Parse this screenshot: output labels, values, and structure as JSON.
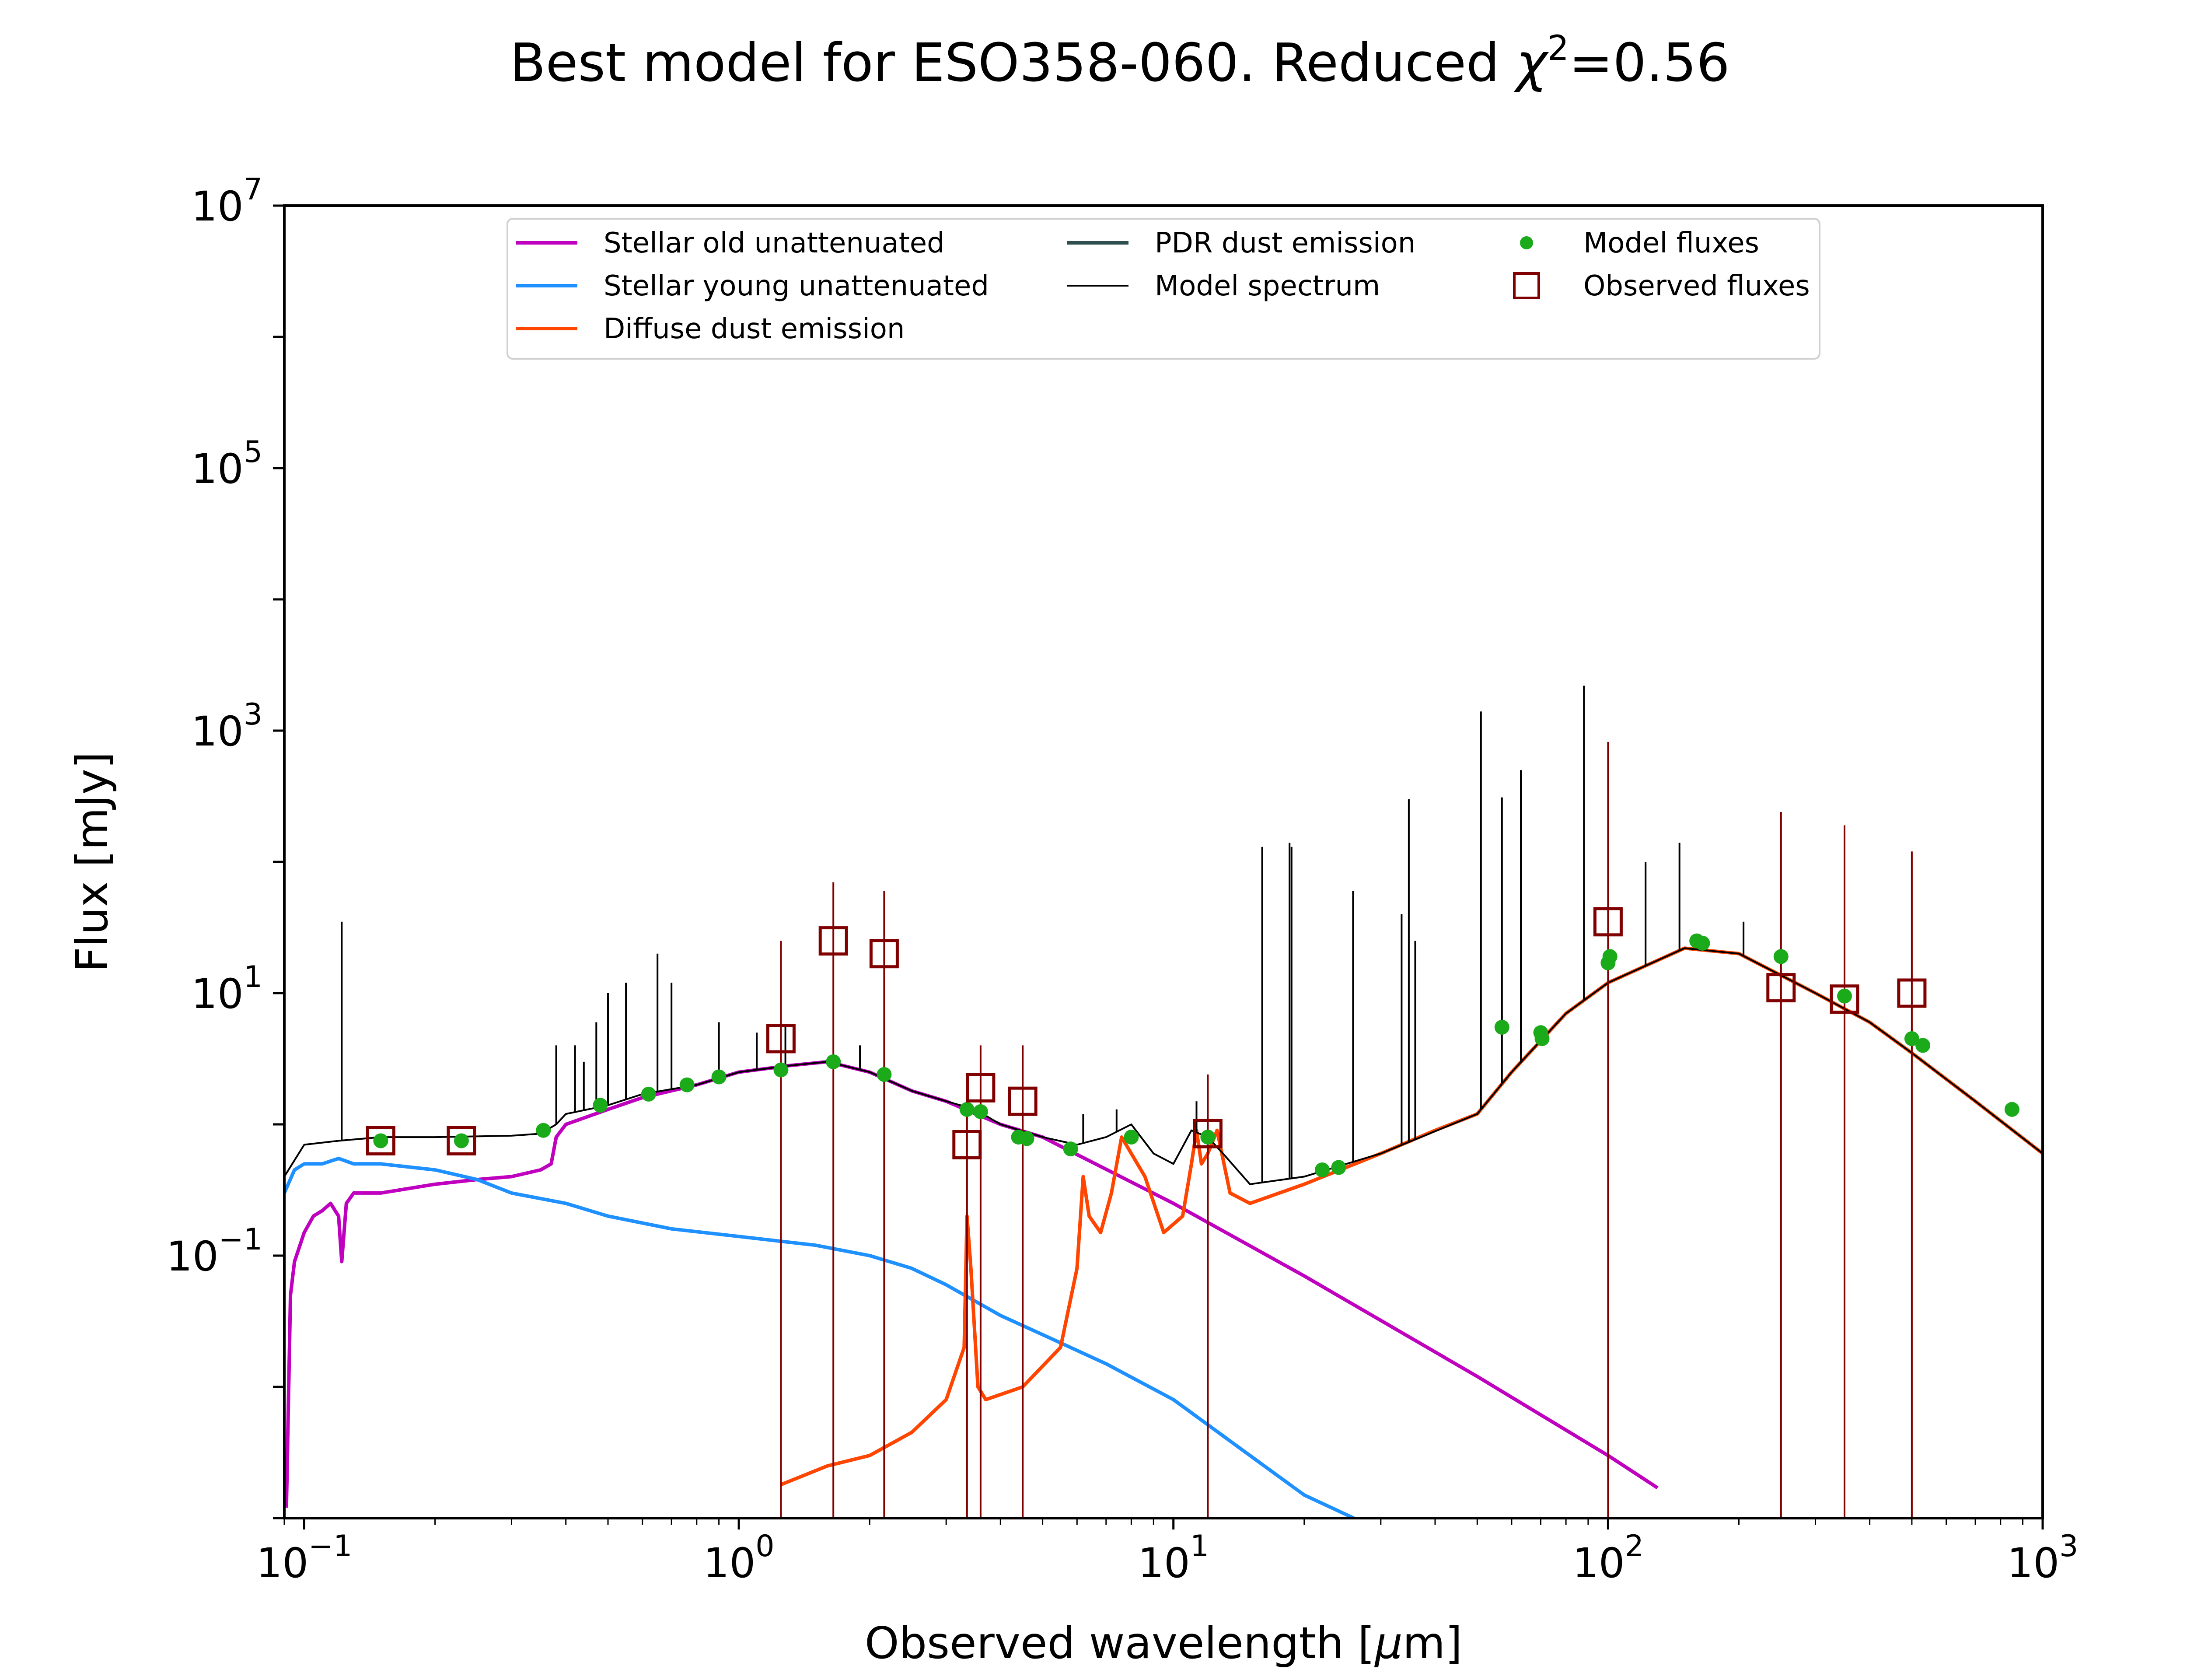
{
  "chart_data": {
    "type": "line",
    "title_main": "Best model for ESO358-060. Reduced ",
    "title_chi": "χ",
    "title_sup": "2",
    "title_value": "=0.56",
    "xlabel_pre": "Observed wavelength [",
    "xlabel_mu": "μ",
    "xlabel_post": "m]",
    "ylabel": "Flux [mJy]",
    "xscale": "log",
    "yscale": "log",
    "xlim": [
      0.09,
      1000
    ],
    "ylim": [
      0.001,
      10000000
    ],
    "grid": false,
    "legend_position": "top-center",
    "x_ticks": [
      {
        "value": 0.1,
        "base": "10",
        "exp": "−1"
      },
      {
        "value": 1,
        "base": "10",
        "exp": "0"
      },
      {
        "value": 10,
        "base": "10",
        "exp": "1"
      },
      {
        "value": 100,
        "base": "10",
        "exp": "2"
      },
      {
        "value": 1000,
        "base": "10",
        "exp": "3"
      }
    ],
    "y_ticks": [
      {
        "value": 0.1,
        "base": "10",
        "exp": "−1"
      },
      {
        "value": 10,
        "base": "10",
        "exp": "1"
      },
      {
        "value": 1000,
        "base": "10",
        "exp": "3"
      },
      {
        "value": 100000,
        "base": "10",
        "exp": "5"
      },
      {
        "value": 10000000,
        "base": "10",
        "exp": "7"
      }
    ],
    "legend": [
      {
        "label": "Stellar old unattenuated",
        "color": "#bf00bf",
        "kind": "line"
      },
      {
        "label": "Stellar young unattenuated",
        "color": "#1e90ff",
        "kind": "line"
      },
      {
        "label": "Diffuse dust emission",
        "color": "#ff4500",
        "kind": "line"
      },
      {
        "label": "PDR dust emission",
        "color": "#2f4f4f",
        "kind": "line"
      },
      {
        "label": "Model spectrum",
        "color": "#000000",
        "kind": "thinline"
      },
      {
        "label": "Model fluxes",
        "color": "#1aaa1a",
        "kind": "dot"
      },
      {
        "label": "Observed fluxes",
        "color": "#800000",
        "kind": "square"
      }
    ],
    "series": [
      {
        "key": "stellar_old",
        "color": "#bf00bf",
        "points": [
          [
            0.091,
            0.0012
          ],
          [
            0.093,
            0.05
          ],
          [
            0.095,
            0.09
          ],
          [
            0.1,
            0.15
          ],
          [
            0.105,
            0.2
          ],
          [
            0.11,
            0.22
          ],
          [
            0.115,
            0.25
          ],
          [
            0.12,
            0.2
          ],
          [
            0.122,
            0.09
          ],
          [
            0.125,
            0.25
          ],
          [
            0.13,
            0.3
          ],
          [
            0.15,
            0.3
          ],
          [
            0.2,
            0.35
          ],
          [
            0.25,
            0.38
          ],
          [
            0.3,
            0.4
          ],
          [
            0.35,
            0.45
          ],
          [
            0.37,
            0.5
          ],
          [
            0.38,
            0.8
          ],
          [
            0.4,
            1.0
          ],
          [
            0.5,
            1.3
          ],
          [
            0.6,
            1.6
          ],
          [
            0.8,
            2.0
          ],
          [
            1.0,
            2.5
          ],
          [
            1.3,
            2.8
          ],
          [
            1.6,
            3.0
          ],
          [
            2.0,
            2.5
          ],
          [
            2.5,
            1.8
          ],
          [
            3.0,
            1.5
          ],
          [
            4.0,
            1.0
          ],
          [
            5.0,
            0.8
          ],
          [
            10.0,
            0.25
          ],
          [
            20.0,
            0.07
          ],
          [
            50.0,
            0.012
          ],
          [
            100.0,
            0.003
          ],
          [
            130.0,
            0.0017
          ]
        ]
      },
      {
        "key": "stellar_young",
        "color": "#1e90ff",
        "points": [
          [
            0.09,
            0.3
          ],
          [
            0.095,
            0.45
          ],
          [
            0.1,
            0.5
          ],
          [
            0.11,
            0.5
          ],
          [
            0.12,
            0.55
          ],
          [
            0.13,
            0.5
          ],
          [
            0.15,
            0.5
          ],
          [
            0.2,
            0.45
          ],
          [
            0.25,
            0.38
          ],
          [
            0.3,
            0.3
          ],
          [
            0.4,
            0.25
          ],
          [
            0.5,
            0.2
          ],
          [
            0.7,
            0.16
          ],
          [
            1.0,
            0.14
          ],
          [
            1.5,
            0.12
          ],
          [
            2.0,
            0.1
          ],
          [
            2.5,
            0.08
          ],
          [
            3.0,
            0.06
          ],
          [
            4.0,
            0.035
          ],
          [
            5.0,
            0.025
          ],
          [
            7.0,
            0.015
          ],
          [
            10.0,
            0.008
          ],
          [
            15.0,
            0.003
          ],
          [
            20.0,
            0.0015
          ],
          [
            26.0,
            0.001
          ]
        ]
      },
      {
        "key": "diffuse_dust",
        "color": "#ff4500",
        "points": [
          [
            1.25,
            0.0018
          ],
          [
            1.6,
            0.0025
          ],
          [
            2.0,
            0.003
          ],
          [
            2.5,
            0.0045
          ],
          [
            3.0,
            0.008
          ],
          [
            3.3,
            0.02
          ],
          [
            3.35,
            0.2
          ],
          [
            3.42,
            0.08
          ],
          [
            3.55,
            0.01
          ],
          [
            3.7,
            0.008
          ],
          [
            4.5,
            0.01
          ],
          [
            5.5,
            0.02
          ],
          [
            6.0,
            0.08
          ],
          [
            6.2,
            0.4
          ],
          [
            6.4,
            0.2
          ],
          [
            6.8,
            0.15
          ],
          [
            7.2,
            0.3
          ],
          [
            7.6,
            0.8
          ],
          [
            8.0,
            0.6
          ],
          [
            8.6,
            0.4
          ],
          [
            9.5,
            0.15
          ],
          [
            10.5,
            0.2
          ],
          [
            11.0,
            0.5
          ],
          [
            11.3,
            0.9
          ],
          [
            11.6,
            0.5
          ],
          [
            12.0,
            0.6
          ],
          [
            12.6,
            0.9
          ],
          [
            13.5,
            0.3
          ],
          [
            15.0,
            0.25
          ],
          [
            20.0,
            0.35
          ],
          [
            30.0,
            0.6
          ],
          [
            40.0,
            0.9
          ],
          [
            50.0,
            1.2
          ],
          [
            60.0,
            2.5
          ],
          [
            80.0,
            7.0
          ],
          [
            100.0,
            12.0
          ],
          [
            150.0,
            22.0
          ],
          [
            200.0,
            20.0
          ],
          [
            300.0,
            10.0
          ],
          [
            400.0,
            6.0
          ],
          [
            500.0,
            3.5
          ],
          [
            700.0,
            1.5
          ],
          [
            1000.0,
            0.6
          ]
        ]
      },
      {
        "key": "model_spectrum",
        "color": "#000000",
        "points": [
          [
            0.09,
            0.4
          ],
          [
            0.1,
            0.7
          ],
          [
            0.12,
            0.75
          ],
          [
            0.15,
            0.8
          ],
          [
            0.2,
            0.8
          ],
          [
            0.3,
            0.82
          ],
          [
            0.35,
            0.85
          ],
          [
            0.38,
            1.0
          ],
          [
            0.4,
            1.2
          ],
          [
            0.5,
            1.4
          ],
          [
            0.6,
            1.7
          ],
          [
            0.8,
            2.0
          ],
          [
            1.0,
            2.5
          ],
          [
            1.3,
            2.8
          ],
          [
            1.6,
            3.0
          ],
          [
            2.0,
            2.5
          ],
          [
            2.5,
            1.8
          ],
          [
            3.0,
            1.5
          ],
          [
            3.5,
            1.3
          ],
          [
            4.0,
            1.0
          ],
          [
            5.0,
            0.8
          ],
          [
            6.0,
            0.7
          ],
          [
            7.0,
            0.8
          ],
          [
            8.0,
            1.0
          ],
          [
            9.0,
            0.6
          ],
          [
            10.0,
            0.5
          ],
          [
            11.0,
            0.9
          ],
          [
            12.0,
            0.8
          ],
          [
            13.0,
            0.6
          ],
          [
            15.0,
            0.35
          ],
          [
            20.0,
            0.4
          ],
          [
            30.0,
            0.6
          ],
          [
            50.0,
            1.2
          ],
          [
            60.0,
            2.5
          ],
          [
            80.0,
            7.0
          ],
          [
            100.0,
            12.0
          ],
          [
            150.0,
            22.0
          ],
          [
            200.0,
            20.0
          ],
          [
            300.0,
            10.0
          ],
          [
            400.0,
            6.0
          ],
          [
            500.0,
            3.5
          ],
          [
            700.0,
            1.5
          ],
          [
            1000.0,
            0.6
          ]
        ]
      }
    ],
    "emission_lines": [
      [
        0.122,
        35
      ],
      [
        0.38,
        4.0
      ],
      [
        0.42,
        4.0
      ],
      [
        0.44,
        3.0
      ],
      [
        0.47,
        6.0
      ],
      [
        0.5,
        10.0
      ],
      [
        0.55,
        12.0
      ],
      [
        0.65,
        20.0
      ],
      [
        0.7,
        12.0
      ],
      [
        0.9,
        6.0
      ],
      [
        1.1,
        5.0
      ],
      [
        1.28,
        5.5
      ],
      [
        1.9,
        4.0
      ],
      [
        6.2,
        1.2
      ],
      [
        7.4,
        1.3
      ],
      [
        11.3,
        1.5
      ],
      [
        16.0,
        130
      ],
      [
        18.5,
        140
      ],
      [
        18.7,
        130
      ],
      [
        25.9,
        60
      ],
      [
        33.5,
        40
      ],
      [
        34.8,
        300
      ],
      [
        36.0,
        25
      ],
      [
        51.0,
        1400
      ],
      [
        57.0,
        310
      ],
      [
        63.0,
        500
      ],
      [
        88.0,
        2200
      ],
      [
        122.0,
        100
      ],
      [
        146.0,
        140
      ],
      [
        205.0,
        35
      ]
    ],
    "model_fluxes": [
      [
        0.15,
        0.75
      ],
      [
        0.23,
        0.75
      ],
      [
        0.355,
        0.9
      ],
      [
        0.48,
        1.4
      ],
      [
        0.62,
        1.7
      ],
      [
        0.76,
        2.0
      ],
      [
        0.9,
        2.3
      ],
      [
        1.25,
        2.6
      ],
      [
        1.65,
        3.0
      ],
      [
        2.16,
        2.4
      ],
      [
        3.35,
        1.3
      ],
      [
        3.6,
        1.25
      ],
      [
        4.4,
        0.8
      ],
      [
        4.6,
        0.78
      ],
      [
        5.8,
        0.65
      ],
      [
        8.0,
        0.8
      ],
      [
        12.0,
        0.8
      ],
      [
        22.0,
        0.45
      ],
      [
        24.0,
        0.47
      ],
      [
        57.0,
        5.5
      ],
      [
        70.0,
        5.0
      ],
      [
        70.5,
        4.5
      ],
      [
        100.0,
        17.0
      ],
      [
        101.0,
        19.0
      ],
      [
        160.0,
        25.0
      ],
      [
        165.0,
        24.0
      ],
      [
        250.0,
        19.0
      ],
      [
        350.0,
        9.5
      ],
      [
        500.0,
        4.5
      ],
      [
        530.0,
        4.0
      ],
      [
        850.0,
        1.3
      ]
    ],
    "observed_fluxes": [
      {
        "x": 0.15,
        "y": 0.75,
        "err": 0
      },
      {
        "x": 0.23,
        "y": 0.75,
        "err": 0
      },
      {
        "x": 1.25,
        "y": 4.5,
        "err": 25
      },
      {
        "x": 1.65,
        "y": 25.0,
        "err": 70
      },
      {
        "x": 2.16,
        "y": 20.0,
        "err": 60
      },
      {
        "x": 3.35,
        "y": 0.7,
        "err": 2.2
      },
      {
        "x": 3.6,
        "y": 1.9,
        "err": 4.0
      },
      {
        "x": 4.5,
        "y": 1.5,
        "err": 4.0
      },
      {
        "x": 12.0,
        "y": 0.85,
        "err": 2.4
      },
      {
        "x": 100.0,
        "y": 35.0,
        "err": 820
      },
      {
        "x": 250.0,
        "y": 11.0,
        "err": 240
      },
      {
        "x": 350.0,
        "y": 9.0,
        "err": 190
      },
      {
        "x": 500.0,
        "y": 10.0,
        "err": 120
      }
    ]
  }
}
